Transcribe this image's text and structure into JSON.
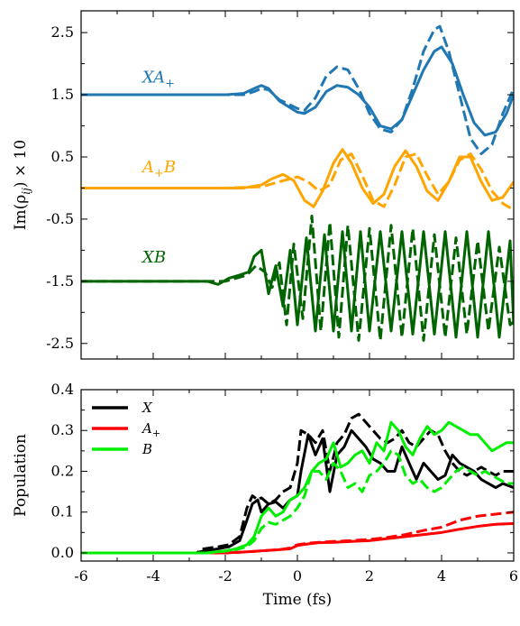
{
  "chart_data": [
    {
      "type": "line",
      "panel": "top",
      "ylabel": "Im(ρ_ij) × 10",
      "xlim": [
        -6,
        6
      ],
      "ylim": [
        -2.75,
        2.85
      ],
      "yticks": [
        "2.5",
        "1.5",
        "0.5",
        "-0.5",
        "-1.5",
        "-2.5"
      ],
      "ytick_values": [
        2.5,
        1.5,
        0.5,
        -0.5,
        -1.5,
        -2.5
      ],
      "series_labels": [
        {
          "name": "XA+",
          "display_main": "XA",
          "display_sub": "+",
          "color": "#1f77b4",
          "label_x": -4.3,
          "label_y": 1.7
        },
        {
          "name": "A+B",
          "display_main": "A",
          "display_sub": "+",
          "display_tail": "B",
          "color": "#ffa500",
          "label_x": -4.3,
          "label_y": 0.25
        },
        {
          "name": "XB",
          "display_main": "XB",
          "color": "#006400",
          "label_x": -4.3,
          "label_y": -1.2
        }
      ],
      "series": [
        {
          "name": "XA+ solid",
          "style": "solid",
          "color": "#1f77b4",
          "x": [
            -6,
            -2,
            -1.5,
            -1.2,
            -1,
            -0.8,
            -0.5,
            0,
            0.2,
            0.5,
            0.8,
            1.1,
            1.4,
            1.7,
            2,
            2.3,
            2.6,
            2.9,
            3.2,
            3.5,
            3.8,
            4.0,
            4.3,
            4.6,
            4.9,
            5.2,
            5.5,
            5.8,
            6
          ],
          "y": [
            1.5,
            1.5,
            1.52,
            1.6,
            1.65,
            1.6,
            1.4,
            1.22,
            1.2,
            1.3,
            1.55,
            1.65,
            1.62,
            1.5,
            1.3,
            1.0,
            0.95,
            1.1,
            1.5,
            1.9,
            2.2,
            2.27,
            2.0,
            1.5,
            1.05,
            0.85,
            0.9,
            1.2,
            1.5
          ]
        },
        {
          "name": "XA+ dashed",
          "style": "dashed",
          "color": "#1f77b4",
          "x": [
            -6,
            -2,
            -1.5,
            -1.2,
            -1,
            -0.8,
            -0.5,
            0,
            0.2,
            0.5,
            0.8,
            1.1,
            1.4,
            1.7,
            2,
            2.3,
            2.6,
            2.9,
            3.2,
            3.5,
            3.8,
            3.95,
            4.2,
            4.5,
            4.8,
            5.1,
            5.4,
            5.7,
            6
          ],
          "y": [
            1.5,
            1.5,
            1.5,
            1.55,
            1.6,
            1.58,
            1.42,
            1.28,
            1.25,
            1.45,
            1.8,
            1.95,
            1.9,
            1.6,
            1.2,
            0.95,
            0.9,
            1.1,
            1.6,
            2.2,
            2.55,
            2.6,
            2.2,
            1.5,
            0.8,
            0.55,
            0.7,
            1.2,
            1.6
          ]
        },
        {
          "name": "A+B solid",
          "style": "solid",
          "color": "#ffa500",
          "x": [
            -6,
            -1.5,
            -1,
            -0.7,
            -0.4,
            -0.1,
            0.2,
            0.45,
            0.7,
            1.0,
            1.25,
            1.5,
            1.8,
            2.1,
            2.4,
            2.7,
            3.0,
            3.3,
            3.6,
            3.9,
            4.2,
            4.5,
            4.8,
            5.1,
            5.4,
            5.7,
            6
          ],
          "y": [
            0.0,
            0.0,
            0.05,
            0.15,
            0.22,
            0.12,
            -0.2,
            -0.3,
            -0.05,
            0.4,
            0.62,
            0.4,
            0.0,
            -0.25,
            -0.1,
            0.35,
            0.6,
            0.35,
            -0.05,
            -0.2,
            0.1,
            0.5,
            0.5,
            0.1,
            -0.2,
            -0.15,
            0.1
          ]
        },
        {
          "name": "A+B dashed",
          "style": "dashed",
          "color": "#ffa500",
          "x": [
            -6,
            -2,
            -1,
            -0.5,
            0,
            0.3,
            0.6,
            0.9,
            1.2,
            1.5,
            1.8,
            2.1,
            2.4,
            2.7,
            3.0,
            3.3,
            3.6,
            3.9,
            4.2,
            4.5,
            4.8,
            5.1,
            5.4,
            5.7,
            6
          ],
          "y": [
            0.0,
            0.0,
            0.02,
            0.1,
            0.18,
            0.1,
            -0.05,
            0.05,
            0.45,
            0.55,
            0.2,
            -0.2,
            -0.3,
            0.05,
            0.5,
            0.55,
            0.2,
            -0.1,
            0.1,
            0.45,
            0.55,
            0.3,
            -0.05,
            -0.25,
            -0.35
          ]
        },
        {
          "name": "XB solid",
          "style": "solid",
          "color": "#006400",
          "x": [
            -6,
            -2.5,
            -2.2,
            -1.9,
            -1.6,
            -1.35,
            -1.2,
            -1.0,
            -0.8,
            -0.6,
            -0.4,
            -0.2,
            0.0,
            0.25,
            0.5,
            0.75,
            1.0,
            1.25,
            1.5,
            1.75,
            2.0,
            2.3,
            2.6,
            2.9,
            3.2,
            3.5,
            3.8,
            4.1,
            4.4,
            4.7,
            5.0,
            5.3,
            5.6,
            5.9,
            6
          ],
          "y": [
            -1.5,
            -1.5,
            -1.55,
            -1.45,
            -1.4,
            -1.35,
            -1.1,
            -1.0,
            -1.7,
            -1.25,
            -1.9,
            -1.0,
            -2.2,
            -0.8,
            -2.3,
            -0.75,
            -2.3,
            -0.7,
            -2.3,
            -0.7,
            -2.3,
            -0.7,
            -2.3,
            -0.7,
            -2.35,
            -0.7,
            -2.35,
            -0.7,
            -2.4,
            -0.7,
            -2.4,
            -0.7,
            -2.4,
            -0.85,
            -2.2
          ]
        },
        {
          "name": "XB dashed",
          "style": "dashed",
          "color": "#006400",
          "x": [
            -6,
            -2.3,
            -2.0,
            -1.7,
            -1.4,
            -1.15,
            -0.9,
            -0.7,
            -0.5,
            -0.3,
            -0.1,
            0.15,
            0.4,
            0.65,
            0.9,
            1.15,
            1.4,
            1.7,
            2.0,
            2.3,
            2.6,
            2.9,
            3.2,
            3.5,
            3.8,
            4.1,
            4.4,
            4.7,
            5.0,
            5.3,
            5.6,
            5.9,
            6
          ],
          "y": [
            -1.5,
            -1.5,
            -1.5,
            -1.45,
            -1.4,
            -1.25,
            -1.35,
            -1.6,
            -1.2,
            -2.2,
            -0.9,
            -2.1,
            -0.45,
            -2.3,
            -0.55,
            -2.4,
            -0.6,
            -2.45,
            -0.65,
            -2.45,
            -0.6,
            -2.4,
            -0.65,
            -2.45,
            -0.75,
            -2.4,
            -0.8,
            -2.35,
            -0.85,
            -2.3,
            -0.95,
            -2.2,
            -2.15
          ]
        }
      ]
    },
    {
      "type": "line",
      "panel": "bottom",
      "xlabel": "Time (fs)",
      "ylabel": "Population",
      "xlim": [
        -6,
        6
      ],
      "ylim": [
        -0.02,
        0.4
      ],
      "xticks": [
        "-6",
        "-4",
        "-2",
        "0",
        "2",
        "4",
        "6"
      ],
      "xtick_values": [
        -6,
        -4,
        -2,
        0,
        2,
        4,
        6
      ],
      "yticks": [
        "0.0",
        "0.1",
        "0.2",
        "0.3",
        "0.4"
      ],
      "ytick_values": [
        0.0,
        0.1,
        0.2,
        0.3,
        0.4
      ],
      "legend": {
        "placement": "top-left",
        "entries": [
          {
            "name": "X",
            "display_main": "X",
            "color": "#000000"
          },
          {
            "name": "A+",
            "display_main": "A",
            "display_sub": "+",
            "color": "#ff0000"
          },
          {
            "name": "B",
            "display_main": "B",
            "color": "#00ee00"
          }
        ]
      },
      "series": [
        {
          "name": "X solid",
          "style": "solid",
          "color": "#000000",
          "x": [
            -6,
            -2.8,
            -2.6,
            -2.2,
            -1.9,
            -1.6,
            -1.4,
            -1.25,
            -1.1,
            -1.0,
            -0.8,
            -0.6,
            -0.4,
            -0.2,
            0.0,
            0.1,
            0.3,
            0.5,
            0.7,
            0.9,
            1.1,
            1.3,
            1.5,
            1.7,
            1.9,
            2.1,
            2.3,
            2.5,
            2.7,
            2.9,
            3.1,
            3.3,
            3.5,
            3.7,
            3.9,
            4.1,
            4.3,
            4.5,
            4.7,
            4.9,
            5.1,
            5.3,
            5.5,
            5.7,
            6
          ],
          "y": [
            0.0,
            0.0,
            0.005,
            0.01,
            0.015,
            0.03,
            0.08,
            0.12,
            0.13,
            0.1,
            0.12,
            0.125,
            0.11,
            0.13,
            0.14,
            0.2,
            0.29,
            0.24,
            0.28,
            0.15,
            0.24,
            0.26,
            0.3,
            0.28,
            0.26,
            0.23,
            0.22,
            0.2,
            0.2,
            0.26,
            0.22,
            0.18,
            0.22,
            0.2,
            0.18,
            0.19,
            0.24,
            0.22,
            0.21,
            0.2,
            0.18,
            0.17,
            0.16,
            0.17,
            0.16
          ]
        },
        {
          "name": "X dashed",
          "style": "dashed",
          "color": "#000000",
          "x": [
            -6,
            -2.8,
            -2.6,
            -2.2,
            -1.9,
            -1.6,
            -1.4,
            -1.25,
            -1.1,
            -1.0,
            -0.8,
            -0.6,
            -0.4,
            -0.2,
            0.0,
            0.1,
            0.3,
            0.5,
            0.7,
            0.9,
            1.1,
            1.3,
            1.5,
            1.7,
            1.9,
            2.1,
            2.3,
            2.5,
            2.7,
            2.9,
            3.1,
            3.3,
            3.5,
            3.7,
            3.9,
            4.1,
            4.3,
            4.5,
            4.7,
            4.9,
            5.1,
            5.3,
            5.5,
            5.7,
            6
          ],
          "y": [
            0.0,
            0.0,
            0.01,
            0.015,
            0.02,
            0.04,
            0.11,
            0.14,
            0.13,
            0.135,
            0.12,
            0.13,
            0.15,
            0.16,
            0.22,
            0.3,
            0.29,
            0.27,
            0.3,
            0.2,
            0.27,
            0.29,
            0.33,
            0.34,
            0.32,
            0.3,
            0.28,
            0.27,
            0.28,
            0.3,
            0.27,
            0.26,
            0.28,
            0.3,
            0.29,
            0.25,
            0.22,
            0.2,
            0.19,
            0.2,
            0.21,
            0.2,
            0.19,
            0.2,
            0.2
          ]
        },
        {
          "name": "A+ solid",
          "style": "solid",
          "color": "#ff0000",
          "x": [
            -6,
            -2,
            -1.5,
            -1,
            -0.5,
            -0.2,
            0.0,
            0.3,
            0.6,
            1.0,
            1.5,
            2.0,
            2.5,
            3.0,
            3.5,
            4.0,
            4.5,
            5.0,
            5.5,
            6
          ],
          "y": [
            0.0,
            0.0,
            0.002,
            0.005,
            0.008,
            0.01,
            0.018,
            0.022,
            0.025,
            0.026,
            0.028,
            0.03,
            0.035,
            0.04,
            0.045,
            0.05,
            0.058,
            0.065,
            0.07,
            0.072
          ]
        },
        {
          "name": "A+ dashed",
          "style": "dashed",
          "color": "#ff0000",
          "x": [
            -6,
            -2,
            -1.5,
            -1,
            -0.5,
            -0.2,
            0.0,
            0.3,
            0.6,
            1.0,
            1.5,
            2.0,
            2.5,
            3.0,
            3.5,
            4.0,
            4.5,
            5.0,
            5.5,
            6
          ],
          "y": [
            0.0,
            0.0,
            0.002,
            0.005,
            0.008,
            0.012,
            0.02,
            0.024,
            0.026,
            0.028,
            0.03,
            0.033,
            0.038,
            0.045,
            0.055,
            0.063,
            0.08,
            0.09,
            0.095,
            0.1
          ]
        },
        {
          "name": "B solid",
          "style": "solid",
          "color": "#00ee00",
          "x": [
            -6,
            -2.5,
            -2.0,
            -1.7,
            -1.4,
            -1.2,
            -1.0,
            -0.8,
            -0.6,
            -0.4,
            -0.2,
            0.0,
            0.2,
            0.4,
            0.6,
            0.8,
            1.0,
            1.2,
            1.4,
            1.6,
            1.8,
            2.0,
            2.2,
            2.4,
            2.6,
            2.8,
            3.0,
            3.2,
            3.4,
            3.6,
            3.8,
            4.0,
            4.2,
            4.4,
            4.6,
            4.8,
            5.0,
            5.2,
            5.4,
            5.6,
            5.8,
            6
          ],
          "y": [
            0.0,
            0.0,
            0.005,
            0.01,
            0.02,
            0.04,
            0.09,
            0.11,
            0.09,
            0.1,
            0.13,
            0.14,
            0.16,
            0.2,
            0.22,
            0.23,
            0.27,
            0.21,
            0.22,
            0.24,
            0.25,
            0.22,
            0.27,
            0.25,
            0.32,
            0.3,
            0.26,
            0.24,
            0.28,
            0.31,
            0.29,
            0.3,
            0.32,
            0.31,
            0.3,
            0.29,
            0.29,
            0.27,
            0.25,
            0.26,
            0.27,
            0.27
          ]
        },
        {
          "name": "B dashed",
          "style": "dashed",
          "color": "#00ee00",
          "x": [
            -6,
            -2.5,
            -2.0,
            -1.7,
            -1.4,
            -1.2,
            -1.0,
            -0.8,
            -0.6,
            -0.4,
            -0.2,
            0.0,
            0.2,
            0.4,
            0.6,
            0.8,
            1.0,
            1.2,
            1.4,
            1.6,
            1.8,
            2.0,
            2.2,
            2.4,
            2.6,
            2.8,
            3.0,
            3.2,
            3.4,
            3.6,
            3.8,
            4.0,
            4.2,
            4.4,
            4.6,
            4.8,
            5.0,
            5.2,
            5.4,
            5.6,
            5.8,
            6
          ],
          "y": [
            0.0,
            0.0,
            0.004,
            0.008,
            0.015,
            0.03,
            0.06,
            0.075,
            0.07,
            0.08,
            0.09,
            0.11,
            0.14,
            0.2,
            0.2,
            0.18,
            0.22,
            0.2,
            0.16,
            0.17,
            0.15,
            0.19,
            0.2,
            0.22,
            0.25,
            0.24,
            0.19,
            0.17,
            0.18,
            0.16,
            0.15,
            0.16,
            0.18,
            0.2,
            0.21,
            0.2,
            0.19,
            0.2,
            0.19,
            0.18,
            0.17,
            0.17
          ]
        }
      ]
    }
  ]
}
